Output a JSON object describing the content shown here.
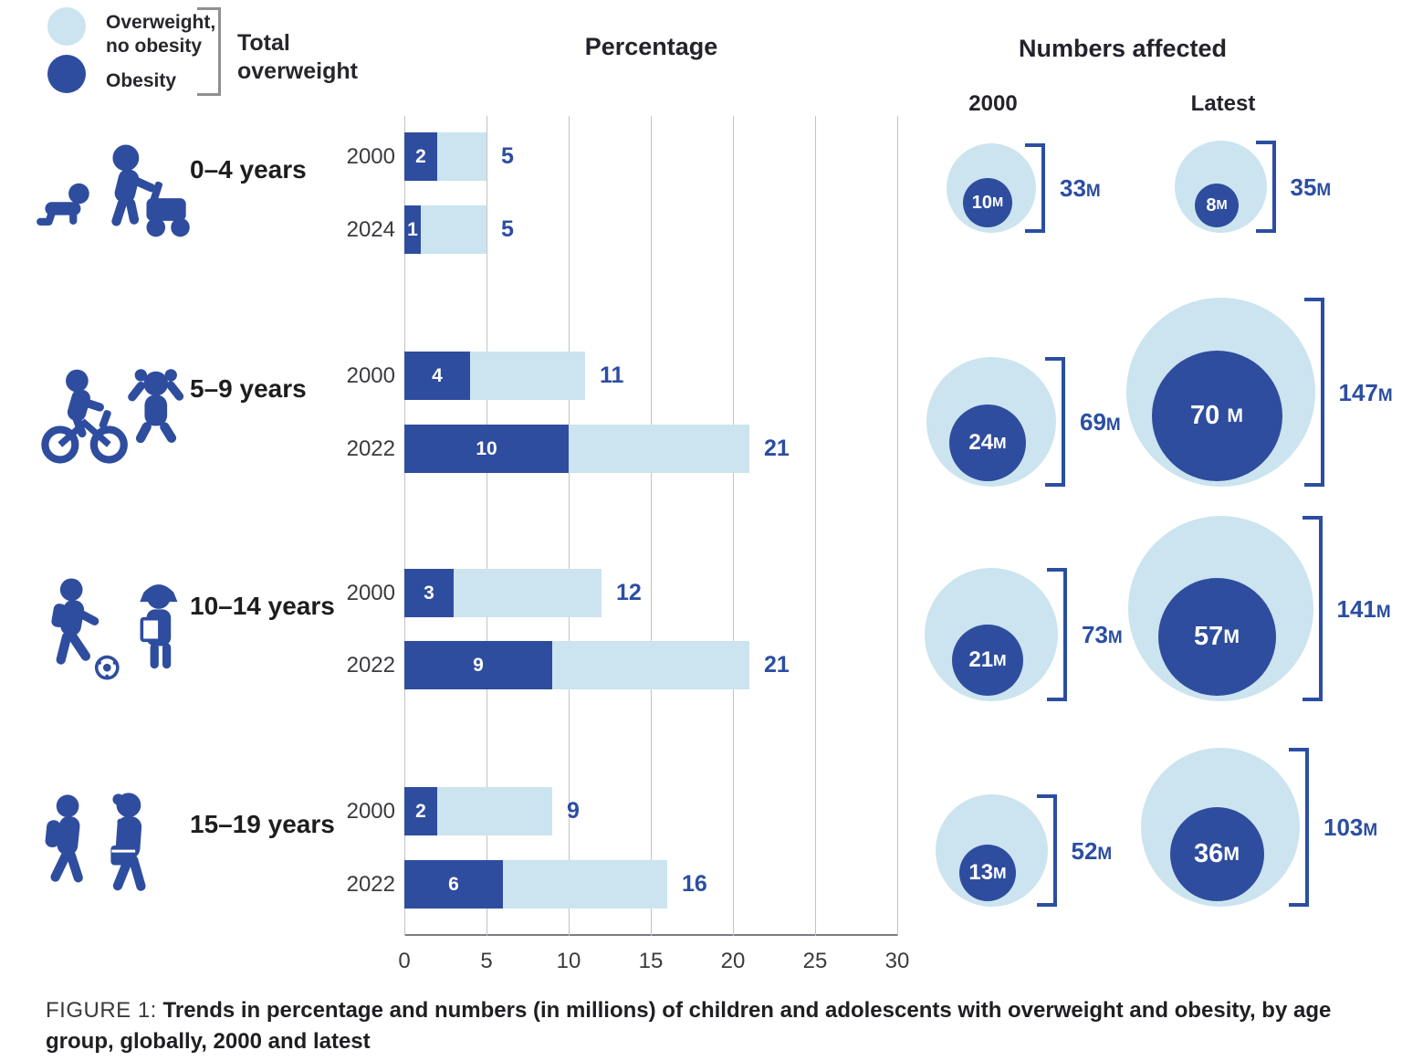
{
  "colors": {
    "obesity_blue": "#2F4D9E",
    "overweight_light_blue": "#CBE4EF",
    "label_blue": "#2B4EA2",
    "grid_gray": "#C3C3C7",
    "text_dark": "#23232B"
  },
  "legend": {
    "items": [
      {
        "name": "overweight-no-obesity",
        "label": "Overweight,\nno obesity",
        "color": "#CBE4EF"
      },
      {
        "name": "obesity",
        "label": "Obesity",
        "color": "#2F4D9E"
      }
    ],
    "bracket_label": "Total\noverweight"
  },
  "headers": {
    "percentage": "Percentage",
    "numbers_affected": "Numbers affected",
    "col_2000": "2000",
    "col_latest": "Latest"
  },
  "axis": {
    "ticks": [
      "0",
      "5",
      "10",
      "15",
      "20",
      "25",
      "30"
    ],
    "max": 30
  },
  "age_groups": [
    {
      "label": "0–4 years",
      "icon": "baby-crawling-and-toddler-walker-icon",
      "bars": [
        {
          "year": "2000",
          "obesity": 2,
          "total": 5
        },
        {
          "year": "2024",
          "obesity": 1,
          "total": 5
        }
      ],
      "numbers": {
        "y2000": {
          "obesity": 10,
          "total": 33,
          "obesity_label": {
            "num": "10",
            "unit": "M"
          },
          "total_label": {
            "num": "33",
            "unit": "M"
          }
        },
        "latest": {
          "obesity": 8,
          "total": 35,
          "obesity_label": {
            "num": "8",
            "unit": "M"
          },
          "total_label": {
            "num": "35",
            "unit": "M"
          }
        }
      }
    },
    {
      "label": "5–9 years",
      "icon": "child-on-bicycle-and-jumping-girl-icon",
      "bars": [
        {
          "year": "2000",
          "obesity": 4,
          "total": 11
        },
        {
          "year": "2022",
          "obesity": 10,
          "total": 21
        }
      ],
      "numbers": {
        "y2000": {
          "obesity": 24,
          "total": 69,
          "obesity_label": {
            "num": "24",
            "unit": "M"
          },
          "total_label": {
            "num": "69",
            "unit": "M"
          }
        },
        "latest": {
          "obesity": 70,
          "total": 147,
          "obesity_label": {
            "num": "70 ",
            "unit": "M"
          },
          "total_label": {
            "num": "147",
            "unit": "M"
          }
        }
      }
    },
    {
      "label": "10–14 years",
      "icon": "boy-soccer-ball-and-girl-with-book-icon",
      "bars": [
        {
          "year": "2000",
          "obesity": 3,
          "total": 12
        },
        {
          "year": "2022",
          "obesity": 9,
          "total": 21
        }
      ],
      "numbers": {
        "y2000": {
          "obesity": 21,
          "total": 73,
          "obesity_label": {
            "num": "21",
            "unit": "M"
          },
          "total_label": {
            "num": "73",
            "unit": "M"
          }
        },
        "latest": {
          "obesity": 57,
          "total": 141,
          "obesity_label": {
            "num": "57",
            "unit": "M"
          },
          "total_label": {
            "num": "141",
            "unit": "M"
          }
        }
      }
    },
    {
      "label": "15–19 years",
      "icon": "teenagers-walking-with-bags-icon",
      "bars": [
        {
          "year": "2000",
          "obesity": 2,
          "total": 9
        },
        {
          "year": "2022",
          "obesity": 6,
          "total": 16
        }
      ],
      "numbers": {
        "y2000": {
          "obesity": 13,
          "total": 52,
          "obesity_label": {
            "num": "13",
            "unit": "M"
          },
          "total_label": {
            "num": "52",
            "unit": "M"
          }
        },
        "latest": {
          "obesity": 36,
          "total": 103,
          "obesity_label": {
            "num": "36",
            "unit": "M"
          },
          "total_label": {
            "num": "103",
            "unit": "M"
          }
        }
      }
    }
  ],
  "caption": {
    "prefix": "FIGURE 1:",
    "text": " Trends in percentage and numbers (in millions) of children and adolescents with overweight and obesity, by age group, globally, 2000 and latest"
  },
  "chart_data": [
    {
      "type": "bar",
      "orientation": "horizontal",
      "stacked": true,
      "title": "Percentage",
      "categories": [
        "0–4 years (2000)",
        "0–4 years (2024)",
        "5–9 years (2000)",
        "5–9 years (2022)",
        "10–14 years (2000)",
        "10–14 years (2022)",
        "15–19 years (2000)",
        "15–19 years (2022)"
      ],
      "series": [
        {
          "name": "Obesity",
          "color": "#2F4D9E",
          "values": [
            2,
            1,
            4,
            10,
            3,
            9,
            2,
            6
          ]
        },
        {
          "name": "Overweight, no obesity",
          "color": "#CBE4EF",
          "values": [
            3,
            4,
            7,
            11,
            9,
            12,
            7,
            10
          ]
        }
      ],
      "totals": [
        5,
        5,
        11,
        21,
        12,
        21,
        9,
        16
      ],
      "xlabel": "",
      "ylabel": "",
      "xlim": [
        0,
        30
      ],
      "xticks": [
        0,
        5,
        10,
        15,
        20,
        25,
        30
      ],
      "grid": true,
      "legend_position": "top-left"
    },
    {
      "type": "bubble",
      "title": "Numbers affected (millions)",
      "columns": [
        "2000",
        "Latest"
      ],
      "rows": [
        {
          "age_group": "0–4 years",
          "col_2000": {
            "obesity": 10,
            "total": 33
          },
          "latest": {
            "obesity": 8,
            "total": 35
          }
        },
        {
          "age_group": "5–9 years",
          "col_2000": {
            "obesity": 24,
            "total": 69
          },
          "latest": {
            "obesity": 70,
            "total": 147
          }
        },
        {
          "age_group": "10–14 years",
          "col_2000": {
            "obesity": 21,
            "total": 73
          },
          "latest": {
            "obesity": 57,
            "total": 141
          }
        },
        {
          "age_group": "15–19 years",
          "col_2000": {
            "obesity": 13,
            "total": 52
          },
          "latest": {
            "obesity": 36,
            "total": 103
          }
        }
      ],
      "note": "bubble area proportional to millions affected; inner dark circle = obesity, outer light circle = total overweight"
    }
  ]
}
